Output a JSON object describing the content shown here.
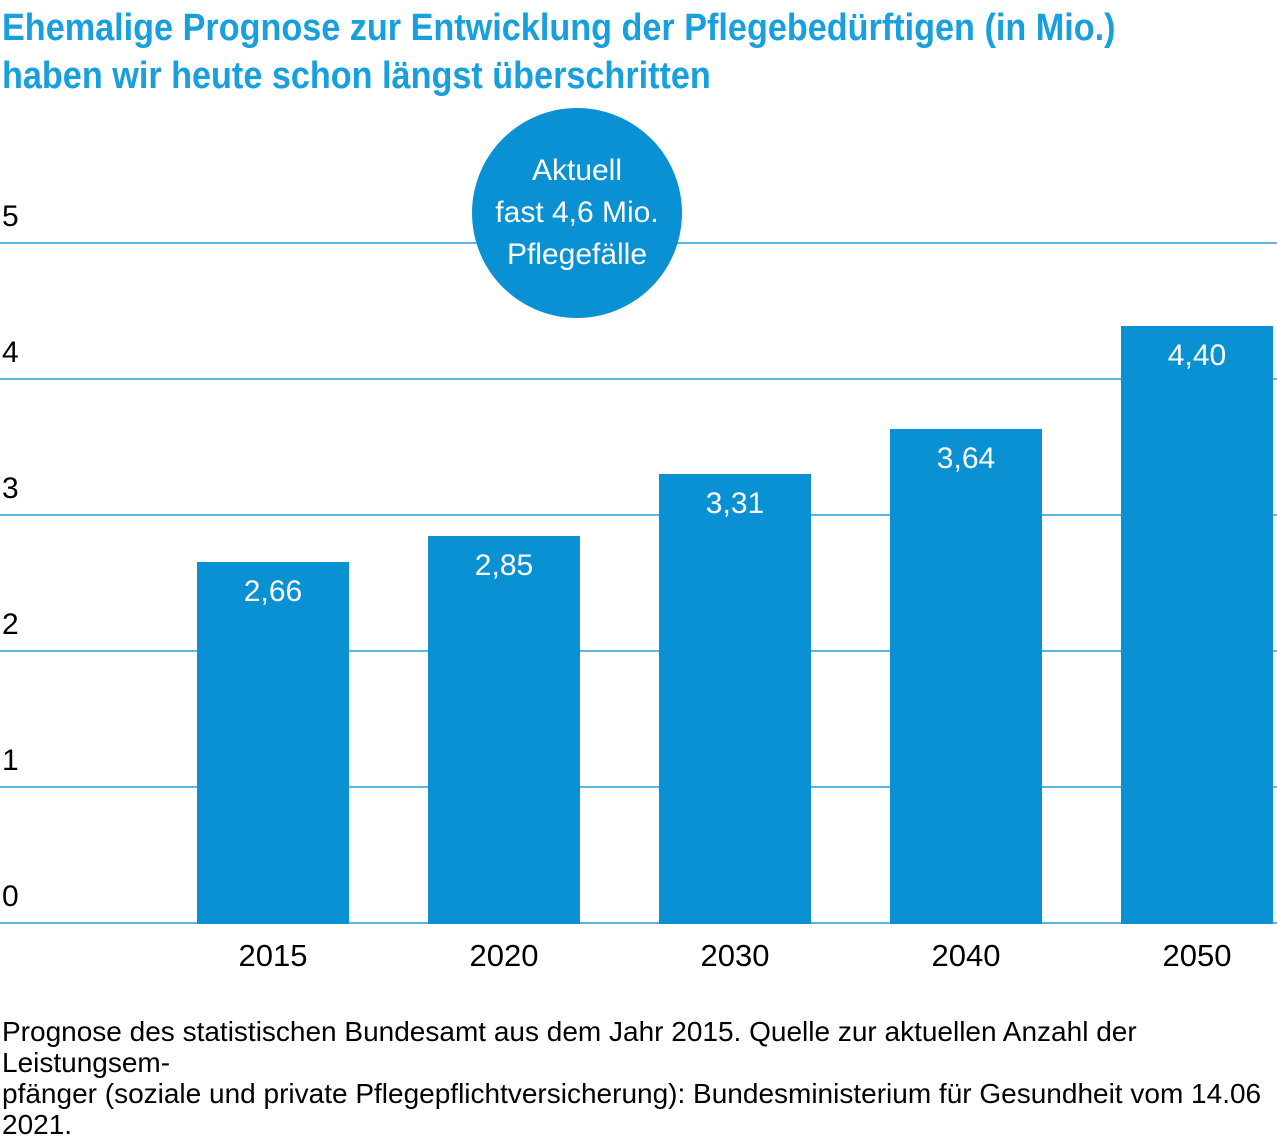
{
  "title": {
    "line1": "Ehemalige Prognose zur Entwicklung der Pflegebedürftigen (in Mio.)",
    "line2": "haben wir heute schon längst überschritten"
  },
  "annotation": {
    "lines": [
      "Aktuell",
      "fast 4,6 Mio.",
      "Pflegefälle"
    ]
  },
  "chart_data": {
    "type": "bar",
    "title": "Ehemalige Prognose zur Entwicklung der Pflegebedürftigen (in Mio.) haben wir heute schon längst überschritten",
    "categories": [
      "2015",
      "2020",
      "2030",
      "2040",
      "2050"
    ],
    "values": [
      2.66,
      2.85,
      3.31,
      3.64,
      4.4
    ],
    "value_labels": [
      "2,66",
      "2,85",
      "3,31",
      "3,64",
      "4,40"
    ],
    "xlabel": "",
    "ylabel": "",
    "ylim": [
      0,
      5
    ],
    "yticks": [
      "0",
      "1",
      "2",
      "3",
      "4",
      "5"
    ],
    "grid": true,
    "legend": false,
    "annotation": "Aktuell fast 4,6 Mio. Pflegefälle",
    "value_labels_position": "inside-top",
    "bar_color": "#0a91d4"
  },
  "footer": {
    "line1": "Prognose des statistischen Bundesamt aus dem Jahr 2015. Quelle zur aktuellen Anzahl der Leistungsem-",
    "line2": "pfänger (soziale und private Pflegepflichtversicherung): Bundesministerium für Gesundheit vom 14.06 2021."
  },
  "colors": {
    "title_blue": "#189fdd",
    "bar_blue": "#0a91d4",
    "gridline_blue": "#5cb5e3",
    "text_black": "#000000",
    "label_white": "#ffffff"
  }
}
